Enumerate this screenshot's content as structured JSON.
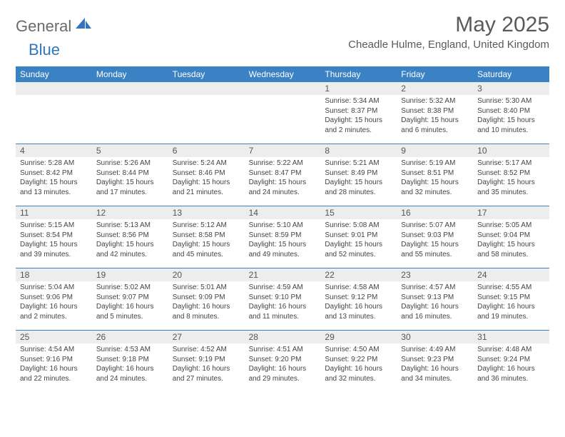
{
  "logo": {
    "word1": "General",
    "word2": "Blue"
  },
  "title": "May 2025",
  "location": "Cheadle Hulme, England, United Kingdom",
  "header_bg": "#3b82c4",
  "daynum_bg": "#ededed",
  "week_border": "#3b82c4",
  "day_names": [
    "Sunday",
    "Monday",
    "Tuesday",
    "Wednesday",
    "Thursday",
    "Friday",
    "Saturday"
  ],
  "weeks": [
    [
      null,
      null,
      null,
      null,
      {
        "n": "1",
        "sr": "Sunrise: 5:34 AM",
        "ss": "Sunset: 8:37 PM",
        "d1": "Daylight: 15 hours",
        "d2": "and 2 minutes."
      },
      {
        "n": "2",
        "sr": "Sunrise: 5:32 AM",
        "ss": "Sunset: 8:38 PM",
        "d1": "Daylight: 15 hours",
        "d2": "and 6 minutes."
      },
      {
        "n": "3",
        "sr": "Sunrise: 5:30 AM",
        "ss": "Sunset: 8:40 PM",
        "d1": "Daylight: 15 hours",
        "d2": "and 10 minutes."
      }
    ],
    [
      {
        "n": "4",
        "sr": "Sunrise: 5:28 AM",
        "ss": "Sunset: 8:42 PM",
        "d1": "Daylight: 15 hours",
        "d2": "and 13 minutes."
      },
      {
        "n": "5",
        "sr": "Sunrise: 5:26 AM",
        "ss": "Sunset: 8:44 PM",
        "d1": "Daylight: 15 hours",
        "d2": "and 17 minutes."
      },
      {
        "n": "6",
        "sr": "Sunrise: 5:24 AM",
        "ss": "Sunset: 8:46 PM",
        "d1": "Daylight: 15 hours",
        "d2": "and 21 minutes."
      },
      {
        "n": "7",
        "sr": "Sunrise: 5:22 AM",
        "ss": "Sunset: 8:47 PM",
        "d1": "Daylight: 15 hours",
        "d2": "and 24 minutes."
      },
      {
        "n": "8",
        "sr": "Sunrise: 5:21 AM",
        "ss": "Sunset: 8:49 PM",
        "d1": "Daylight: 15 hours",
        "d2": "and 28 minutes."
      },
      {
        "n": "9",
        "sr": "Sunrise: 5:19 AM",
        "ss": "Sunset: 8:51 PM",
        "d1": "Daylight: 15 hours",
        "d2": "and 32 minutes."
      },
      {
        "n": "10",
        "sr": "Sunrise: 5:17 AM",
        "ss": "Sunset: 8:52 PM",
        "d1": "Daylight: 15 hours",
        "d2": "and 35 minutes."
      }
    ],
    [
      {
        "n": "11",
        "sr": "Sunrise: 5:15 AM",
        "ss": "Sunset: 8:54 PM",
        "d1": "Daylight: 15 hours",
        "d2": "and 39 minutes."
      },
      {
        "n": "12",
        "sr": "Sunrise: 5:13 AM",
        "ss": "Sunset: 8:56 PM",
        "d1": "Daylight: 15 hours",
        "d2": "and 42 minutes."
      },
      {
        "n": "13",
        "sr": "Sunrise: 5:12 AM",
        "ss": "Sunset: 8:58 PM",
        "d1": "Daylight: 15 hours",
        "d2": "and 45 minutes."
      },
      {
        "n": "14",
        "sr": "Sunrise: 5:10 AM",
        "ss": "Sunset: 8:59 PM",
        "d1": "Daylight: 15 hours",
        "d2": "and 49 minutes."
      },
      {
        "n": "15",
        "sr": "Sunrise: 5:08 AM",
        "ss": "Sunset: 9:01 PM",
        "d1": "Daylight: 15 hours",
        "d2": "and 52 minutes."
      },
      {
        "n": "16",
        "sr": "Sunrise: 5:07 AM",
        "ss": "Sunset: 9:03 PM",
        "d1": "Daylight: 15 hours",
        "d2": "and 55 minutes."
      },
      {
        "n": "17",
        "sr": "Sunrise: 5:05 AM",
        "ss": "Sunset: 9:04 PM",
        "d1": "Daylight: 15 hours",
        "d2": "and 58 minutes."
      }
    ],
    [
      {
        "n": "18",
        "sr": "Sunrise: 5:04 AM",
        "ss": "Sunset: 9:06 PM",
        "d1": "Daylight: 16 hours",
        "d2": "and 2 minutes."
      },
      {
        "n": "19",
        "sr": "Sunrise: 5:02 AM",
        "ss": "Sunset: 9:07 PM",
        "d1": "Daylight: 16 hours",
        "d2": "and 5 minutes."
      },
      {
        "n": "20",
        "sr": "Sunrise: 5:01 AM",
        "ss": "Sunset: 9:09 PM",
        "d1": "Daylight: 16 hours",
        "d2": "and 8 minutes."
      },
      {
        "n": "21",
        "sr": "Sunrise: 4:59 AM",
        "ss": "Sunset: 9:10 PM",
        "d1": "Daylight: 16 hours",
        "d2": "and 11 minutes."
      },
      {
        "n": "22",
        "sr": "Sunrise: 4:58 AM",
        "ss": "Sunset: 9:12 PM",
        "d1": "Daylight: 16 hours",
        "d2": "and 13 minutes."
      },
      {
        "n": "23",
        "sr": "Sunrise: 4:57 AM",
        "ss": "Sunset: 9:13 PM",
        "d1": "Daylight: 16 hours",
        "d2": "and 16 minutes."
      },
      {
        "n": "24",
        "sr": "Sunrise: 4:55 AM",
        "ss": "Sunset: 9:15 PM",
        "d1": "Daylight: 16 hours",
        "d2": "and 19 minutes."
      }
    ],
    [
      {
        "n": "25",
        "sr": "Sunrise: 4:54 AM",
        "ss": "Sunset: 9:16 PM",
        "d1": "Daylight: 16 hours",
        "d2": "and 22 minutes."
      },
      {
        "n": "26",
        "sr": "Sunrise: 4:53 AM",
        "ss": "Sunset: 9:18 PM",
        "d1": "Daylight: 16 hours",
        "d2": "and 24 minutes."
      },
      {
        "n": "27",
        "sr": "Sunrise: 4:52 AM",
        "ss": "Sunset: 9:19 PM",
        "d1": "Daylight: 16 hours",
        "d2": "and 27 minutes."
      },
      {
        "n": "28",
        "sr": "Sunrise: 4:51 AM",
        "ss": "Sunset: 9:20 PM",
        "d1": "Daylight: 16 hours",
        "d2": "and 29 minutes."
      },
      {
        "n": "29",
        "sr": "Sunrise: 4:50 AM",
        "ss": "Sunset: 9:22 PM",
        "d1": "Daylight: 16 hours",
        "d2": "and 32 minutes."
      },
      {
        "n": "30",
        "sr": "Sunrise: 4:49 AM",
        "ss": "Sunset: 9:23 PM",
        "d1": "Daylight: 16 hours",
        "d2": "and 34 minutes."
      },
      {
        "n": "31",
        "sr": "Sunrise: 4:48 AM",
        "ss": "Sunset: 9:24 PM",
        "d1": "Daylight: 16 hours",
        "d2": "and 36 minutes."
      }
    ]
  ]
}
